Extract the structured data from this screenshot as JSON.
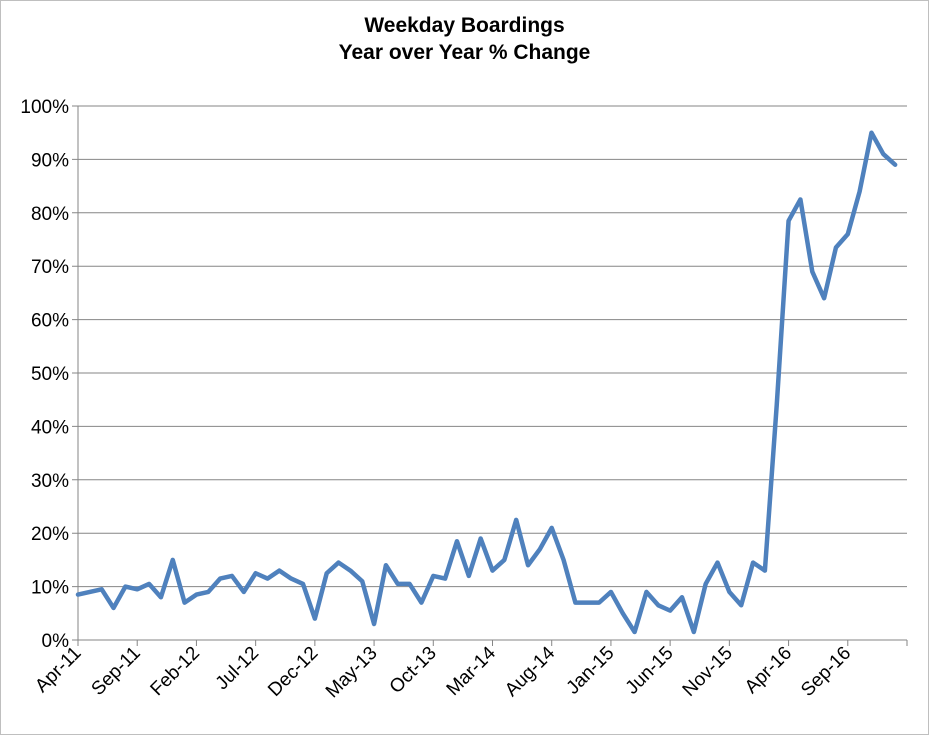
{
  "chart_data": {
    "type": "line",
    "title": "Weekday Boardings",
    "subtitle": "Year over Year % Change",
    "xlabel": "",
    "ylabel": "",
    "ylim": [
      0,
      100
    ],
    "yticks": [
      0,
      10,
      20,
      30,
      40,
      50,
      60,
      70,
      80,
      90,
      100
    ],
    "ytick_labels": [
      "0%",
      "10%",
      "20%",
      "30%",
      "40%",
      "50%",
      "60%",
      "70%",
      "80%",
      "90%",
      "100%"
    ],
    "xtick_labels": [
      "Apr-11",
      "Sep-11",
      "Feb-12",
      "Jul-12",
      "Dec-12",
      "May-13",
      "Oct-13",
      "Mar-14",
      "Aug-14",
      "Jan-15",
      "Jun-15",
      "Nov-15",
      "Apr-16",
      "Sep-16"
    ],
    "grid": true,
    "legend": "none",
    "color": "#4f81bd",
    "series": [
      {
        "x": [
          "Apr-11",
          "May-11",
          "Jun-11",
          "Jul-11",
          "Aug-11",
          "Sep-11",
          "Oct-11",
          "Nov-11",
          "Dec-11",
          "Jan-12",
          "Feb-12",
          "Mar-12",
          "Apr-12",
          "May-12",
          "Jun-12",
          "Jul-12",
          "Aug-12",
          "Sep-12",
          "Oct-12",
          "Nov-12",
          "Dec-12",
          "Jan-13",
          "Feb-13",
          "Mar-13",
          "Apr-13",
          "May-13",
          "Jun-13",
          "Jul-13",
          "Aug-13",
          "Sep-13",
          "Oct-13",
          "Nov-13",
          "Dec-13",
          "Jan-14",
          "Feb-14",
          "Mar-14",
          "Apr-14",
          "May-14",
          "Jun-14",
          "Jul-14",
          "Aug-14",
          "Sep-14",
          "Oct-14",
          "Nov-14",
          "Dec-14",
          "Jan-15",
          "Feb-15",
          "Mar-15",
          "Apr-15",
          "May-15",
          "Jun-15",
          "Jul-15",
          "Aug-15",
          "Sep-15",
          "Oct-15",
          "Nov-15",
          "Dec-15",
          "Jan-16",
          "Feb-16",
          "Mar-16",
          "Apr-16",
          "May-16",
          "Jun-16",
          "Jul-16",
          "Aug-16",
          "Sep-16",
          "Oct-16",
          "Nov-16",
          "Dec-16",
          "Jan-17",
          "Feb-17"
        ],
        "values": [
          8.5,
          9.0,
          9.5,
          6.0,
          10.0,
          9.5,
          10.5,
          8.0,
          15.0,
          7.0,
          8.5,
          9.0,
          11.5,
          12.0,
          9.0,
          12.5,
          11.5,
          13.0,
          11.5,
          10.5,
          4.0,
          12.5,
          14.5,
          13.0,
          11.0,
          3.0,
          14.0,
          10.5,
          10.5,
          7.0,
          12.0,
          11.5,
          18.5,
          12.0,
          19.0,
          13.0,
          15.0,
          22.5,
          14.0,
          17.0,
          21.0,
          15.0,
          7.0,
          7.0,
          7.0,
          9.0,
          5.0,
          1.5,
          9.0,
          6.5,
          5.5,
          8.0,
          1.5,
          10.5,
          14.5,
          9.0,
          6.5,
          14.5,
          13.0,
          44.0,
          78.5,
          82.5,
          69.0,
          64.0,
          73.5,
          76.0,
          84.0,
          95.0,
          91.0,
          89.0,
          null
        ]
      }
    ]
  }
}
